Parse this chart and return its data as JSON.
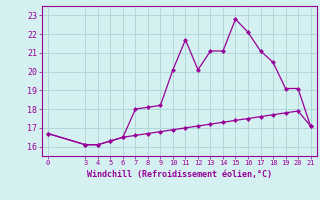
{
  "xlabel": "Windchill (Refroidissement éolien,°C)",
  "background_color": "#d4f0f0",
  "grid_color": "#b0d8d8",
  "line_color": "#990099",
  "x_ticks": [
    0,
    3,
    4,
    5,
    6,
    7,
    8,
    9,
    10,
    11,
    12,
    13,
    14,
    15,
    16,
    17,
    18,
    19,
    20,
    21
  ],
  "ylim": [
    15.5,
    23.5
  ],
  "xlim": [
    -0.5,
    21.5
  ],
  "line1_x": [
    0,
    3,
    4,
    5,
    6,
    7,
    8,
    9,
    10,
    11,
    12,
    13,
    14,
    15,
    16,
    17,
    18,
    19,
    20,
    21
  ],
  "line1_y": [
    16.7,
    16.1,
    16.1,
    16.3,
    16.5,
    16.6,
    16.7,
    16.8,
    16.9,
    17.0,
    17.1,
    17.2,
    17.3,
    17.4,
    17.5,
    17.6,
    17.7,
    17.8,
    17.9,
    17.1
  ],
  "line2_x": [
    0,
    3,
    4,
    5,
    6,
    7,
    8,
    9,
    10,
    11,
    12,
    13,
    14,
    15,
    16,
    17,
    18,
    19,
    20,
    21
  ],
  "line2_y": [
    16.7,
    16.1,
    16.1,
    16.3,
    16.5,
    18.0,
    18.1,
    18.2,
    20.1,
    21.7,
    20.1,
    21.1,
    21.1,
    22.8,
    22.1,
    21.1,
    20.5,
    19.1,
    19.1,
    17.1
  ],
  "yticks": [
    16,
    17,
    18,
    19,
    20,
    21,
    22,
    23
  ]
}
